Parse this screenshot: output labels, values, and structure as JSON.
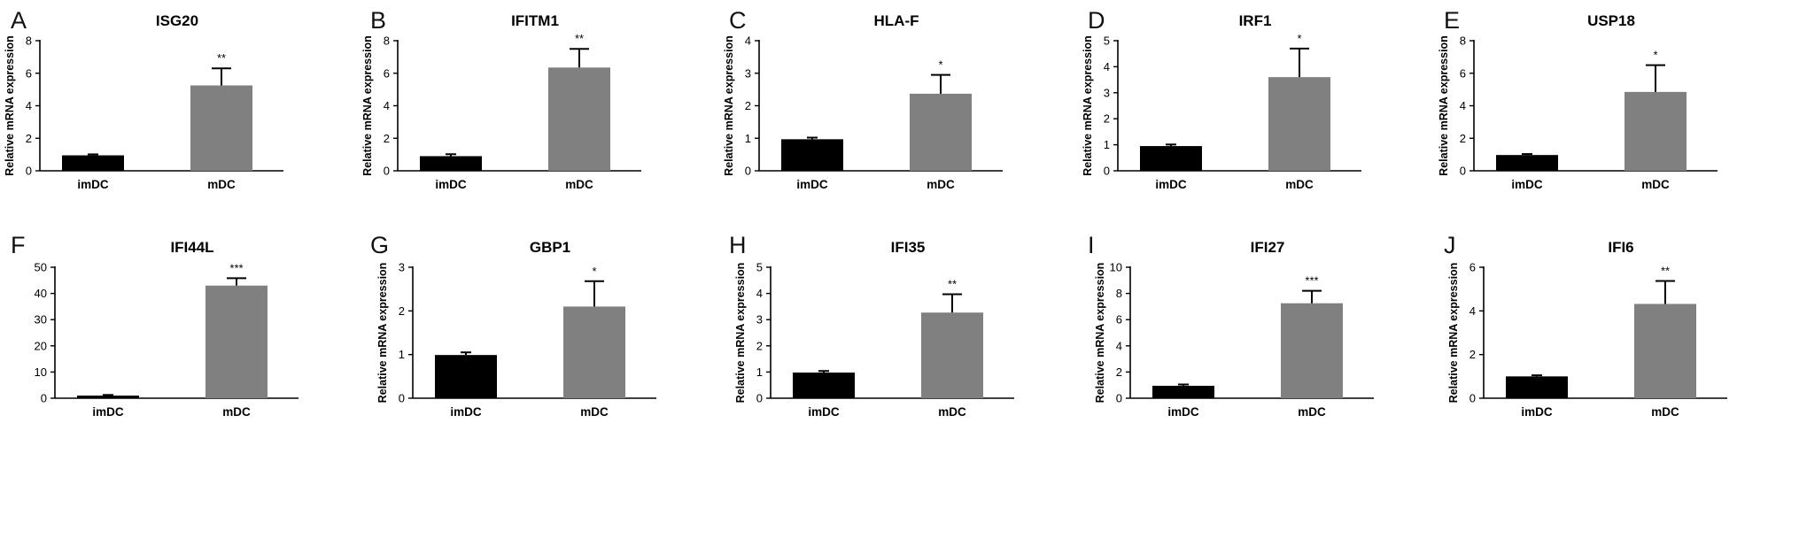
{
  "colors": {
    "imDC": "#000000",
    "mDC": "#808080",
    "axis": "#000000"
  },
  "chart_data": [
    {
      "type": "bar",
      "panel": "A",
      "title": "ISG20",
      "categories": [
        "imDC",
        "mDC"
      ],
      "values": [
        0.95,
        5.25
      ],
      "errors": [
        0.06,
        1.05
      ],
      "significance": "**",
      "ylabel": "Relative mRNA expression",
      "ylim": [
        0,
        8
      ],
      "yticks": [
        "0",
        "2",
        "4",
        "6",
        "8"
      ]
    },
    {
      "type": "bar",
      "panel": "B",
      "title": "IFITM1",
      "categories": [
        "imDC",
        "mDC"
      ],
      "values": [
        0.9,
        6.35
      ],
      "errors": [
        0.12,
        1.15
      ],
      "significance": "**",
      "ylabel": "Relative mRNA expression",
      "ylim": [
        0,
        8
      ],
      "yticks": [
        "0",
        "2",
        "4",
        "6",
        "8"
      ]
    },
    {
      "type": "bar",
      "panel": "C",
      "title": "HLA-F",
      "categories": [
        "imDC",
        "mDC"
      ],
      "values": [
        0.97,
        2.37
      ],
      "errors": [
        0.05,
        0.58
      ],
      "significance": "*",
      "ylabel": "Relative mRNA expression",
      "ylim": [
        0,
        4
      ],
      "yticks": [
        "0",
        "1",
        "2",
        "3",
        "4"
      ]
    },
    {
      "type": "bar",
      "panel": "D",
      "title": "IRF1",
      "categories": [
        "imDC",
        "mDC"
      ],
      "values": [
        0.95,
        3.6
      ],
      "errors": [
        0.06,
        1.1
      ],
      "significance": "*",
      "ylabel": "Relative mRNA expression",
      "ylim": [
        0,
        5
      ],
      "yticks": [
        "0",
        "1",
        "2",
        "3",
        "4",
        "5"
      ]
    },
    {
      "type": "bar",
      "panel": "E",
      "title": "USP18",
      "categories": [
        "imDC",
        "mDC"
      ],
      "values": [
        0.97,
        4.85
      ],
      "errors": [
        0.06,
        1.65
      ],
      "significance": "*",
      "ylabel": "Relative mRNA expression",
      "ylim": [
        0,
        8
      ],
      "yticks": [
        "0",
        "2",
        "4",
        "6",
        "8"
      ]
    },
    {
      "type": "bar",
      "panel": "F",
      "title": "IFI44L",
      "categories": [
        "imDC",
        "mDC"
      ],
      "values": [
        1.0,
        43.0
      ],
      "errors": [
        0.25,
        2.8
      ],
      "significance": "***",
      "ylabel": "",
      "ylim": [
        0,
        50
      ],
      "yticks": [
        "0",
        "10",
        "20",
        "30",
        "40",
        "50"
      ]
    },
    {
      "type": "bar",
      "panel": "G",
      "title": "GBP1",
      "categories": [
        "imDC",
        "mDC"
      ],
      "values": [
        0.99,
        2.1
      ],
      "errors": [
        0.06,
        0.58
      ],
      "significance": "*",
      "ylabel": "Relative mRNA expression",
      "ylim": [
        0,
        3
      ],
      "yticks": [
        "0",
        "1",
        "2",
        "3"
      ]
    },
    {
      "type": "bar",
      "panel": "H",
      "title": "IFI35",
      "categories": [
        "imDC",
        "mDC"
      ],
      "values": [
        0.98,
        3.27
      ],
      "errors": [
        0.06,
        0.7
      ],
      "significance": "**",
      "ylabel": "Relative mRNA expression",
      "ylim": [
        0,
        5
      ],
      "yticks": [
        "0",
        "1",
        "2",
        "3",
        "4",
        "5"
      ]
    },
    {
      "type": "bar",
      "panel": "I",
      "title": "IFI27",
      "categories": [
        "imDC",
        "mDC"
      ],
      "values": [
        0.95,
        7.25
      ],
      "errors": [
        0.1,
        0.95
      ],
      "significance": "***",
      "ylabel": "Relative mRNA expression",
      "ylim": [
        0,
        10
      ],
      "yticks": [
        "0",
        "2",
        "4",
        "6",
        "8",
        "10"
      ]
    },
    {
      "type": "bar",
      "panel": "J",
      "title": "IFI6",
      "categories": [
        "imDC",
        "mDC"
      ],
      "values": [
        1.0,
        4.32
      ],
      "errors": [
        0.05,
        1.05
      ],
      "significance": "**",
      "ylabel": "Relative mRNA expression",
      "ylim": [
        0,
        6
      ],
      "yticks": [
        "0",
        "2",
        "4",
        "6"
      ]
    }
  ]
}
